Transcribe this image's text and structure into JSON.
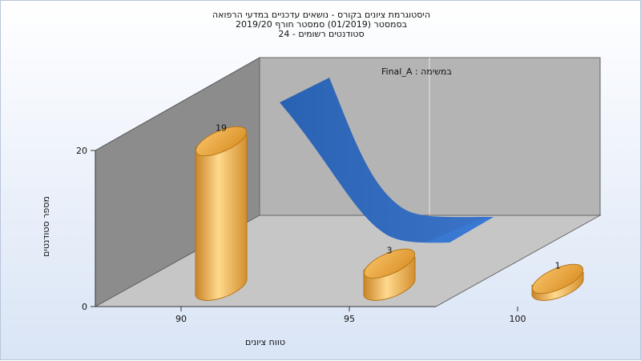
{
  "chart_data": {
    "type": "bar",
    "title_lines": [
      "היסטוגרמת ציונים בקורס - נושאים עדכניים במדעי הרפואה",
      "בסמסטר  (01/2019)  סמסטר חורף 2019/20",
      "סטודנטים רשומים - 24"
    ],
    "ylabel": "מספר סטודנטים",
    "xlabel": "טווח ציונים",
    "x_ticks": [
      90,
      95,
      100
    ],
    "y_ticks": [
      0,
      20
    ],
    "ylim": [
      0,
      30
    ],
    "bars": [
      {
        "x": 90,
        "value": 19,
        "label": "19"
      },
      {
        "x": 95,
        "value": 3,
        "label": "3"
      },
      {
        "x": 100,
        "value": 1,
        "label": "1"
      }
    ],
    "series_label": "במשימה : Final_A",
    "colors": {
      "bar": "#f0a741",
      "curve": "#2f67b8",
      "back_wall": "#b4b4b4",
      "side_wall": "#8c8c8c",
      "floor": "#c6c6c6"
    }
  }
}
